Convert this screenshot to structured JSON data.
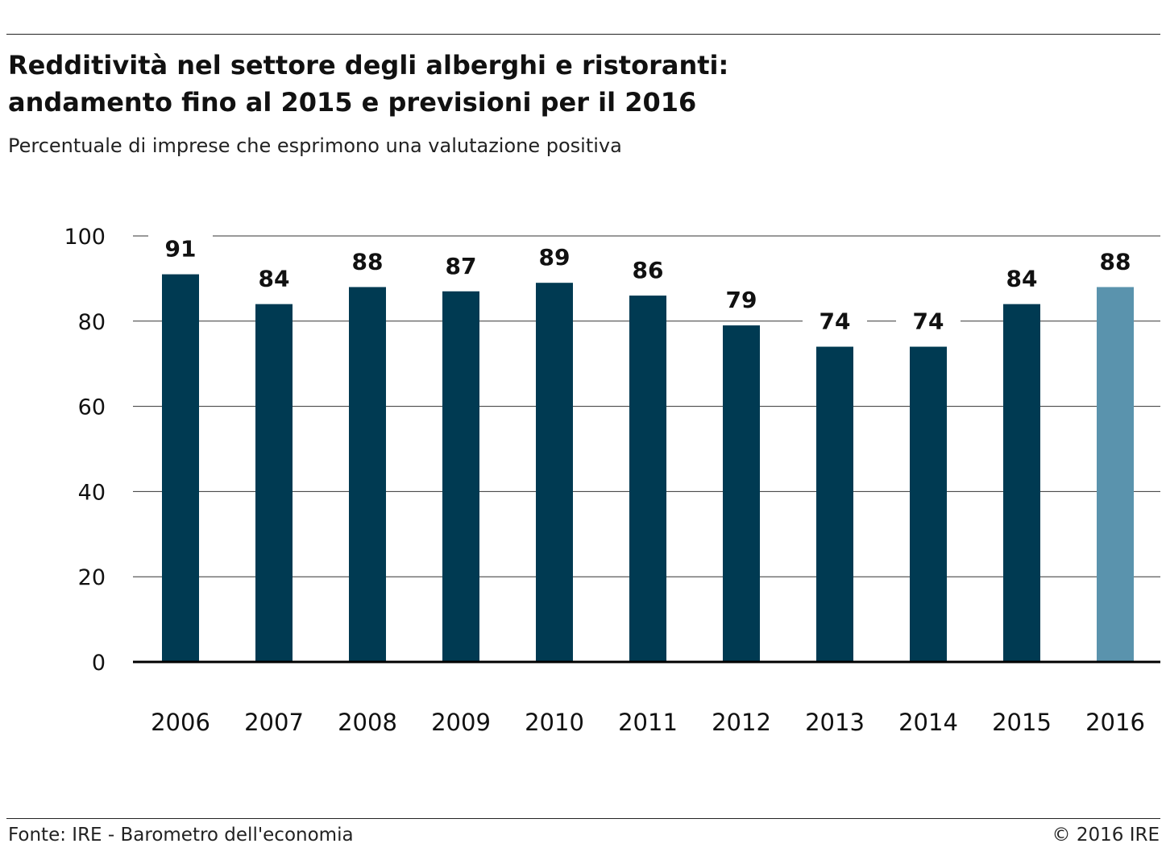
{
  "header": {
    "title_line1": "Redditività nel settore degli alberghi e ristoranti:",
    "title_line2": "andamento fino al 2015 e previsioni per il 2016",
    "subtitle": "Percentuale di imprese che esprimono una valutazione positiva"
  },
  "footer": {
    "source": "Fonte: IRE - Barometro dell'economia",
    "copyright": "© 2016 IRE"
  },
  "colors": {
    "actual_bar": "#003a52",
    "forecast_bar": "#5a93ad",
    "gridline": "#333333",
    "axis": "#000000"
  },
  "chart_data": {
    "type": "bar",
    "title": "Redditività nel settore degli alberghi e ristoranti: andamento fino al 2015 e previsioni per il 2016",
    "subtitle": "Percentuale di imprese che esprimono una valutazione positiva",
    "xlabel": "",
    "ylabel": "",
    "categories": [
      "2006",
      "2007",
      "2008",
      "2009",
      "2010",
      "2011",
      "2012",
      "2013",
      "2014",
      "2015",
      "2016"
    ],
    "values": [
      91,
      84,
      88,
      87,
      89,
      86,
      79,
      74,
      74,
      84,
      88
    ],
    "data_labels": [
      "91",
      "84",
      "88",
      "87",
      "89",
      "86",
      "79",
      "74",
      "74",
      "84",
      "88"
    ],
    "forecast_categories": [
      "2016"
    ],
    "ylim": [
      0,
      100
    ],
    "yticks": [
      0,
      20,
      40,
      60,
      80,
      100
    ],
    "ytick_labels": [
      "0",
      "20",
      "40",
      "60",
      "80",
      "100"
    ],
    "grid": true,
    "legend": "none"
  }
}
